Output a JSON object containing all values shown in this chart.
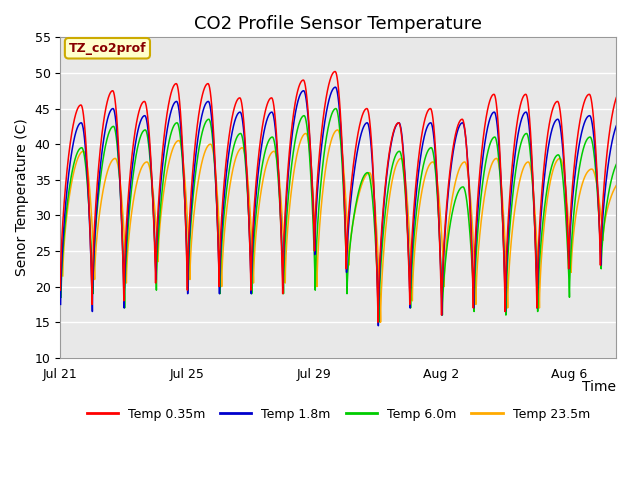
{
  "title": "CO2 Profile Sensor Temperature",
  "ylabel": "Senor Temperature (C)",
  "xlabel": "Time",
  "annotation_text": "TZ_co2prof",
  "annotation_bg": "#ffffcc",
  "annotation_border": "#ccaa00",
  "xlim_start": 0,
  "xlim_end": 17.5,
  "ylim": [
    10,
    55
  ],
  "yticks": [
    10,
    15,
    20,
    25,
    30,
    35,
    40,
    45,
    50,
    55
  ],
  "xtick_positions": [
    0,
    4,
    8,
    12,
    16
  ],
  "xtick_labels": [
    "Jul 21",
    "Jul 25",
    "Jul 29",
    "Aug 2",
    "Aug 6"
  ],
  "colors": {
    "red": "#ff0000",
    "blue": "#0000cc",
    "green": "#00cc00",
    "orange": "#ffaa00"
  },
  "legend_labels": [
    "Temp 0.35m",
    "Temp 1.8m",
    "Temp 6.0m",
    "Temp 23.5m"
  ],
  "plot_bg": "#e8e8e8",
  "fig_bg": "#ffffff",
  "title_fontsize": 13,
  "axis_label_fontsize": 10,
  "tick_fontsize": 9,
  "grid_color": "#ffffff",
  "num_cycles": 17
}
